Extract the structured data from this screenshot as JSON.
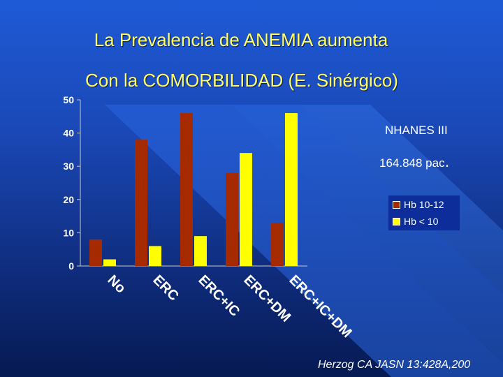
{
  "slide": {
    "title_line1": "La  Prevalencia de ANEMIA aumenta",
    "title_line2": "Con la COMORBILIDAD (E. Sinérgico)",
    "annotation_line1": "NHANES III",
    "annotation_line2": "164.848 pac",
    "annotation_period": ".",
    "citation": "Herzog CA JASN 13:428A,200"
  },
  "colors": {
    "title": "#ffff66",
    "series_hb_10_12": "#a52a00",
    "series_hb_lt_10": "#ffff00",
    "text": "#ffffff"
  },
  "chart_data": {
    "type": "bar",
    "categories": [
      "No",
      "ERC",
      "ERC+IC",
      "ERC+DM",
      "ERC+IC+DM"
    ],
    "series": [
      {
        "name": "Hb 10-12",
        "values": [
          8,
          38,
          46,
          28,
          13
        ]
      },
      {
        "name": "Hb < 10",
        "values": [
          2,
          6,
          9,
          34,
          46
        ]
      }
    ],
    "y_ticks": [
      "0",
      "10",
      "20",
      "30",
      "40",
      "50"
    ],
    "ylim": [
      0,
      50
    ],
    "title": "",
    "xlabel": "",
    "ylabel": "",
    "grid": false,
    "legend_position": "right"
  }
}
